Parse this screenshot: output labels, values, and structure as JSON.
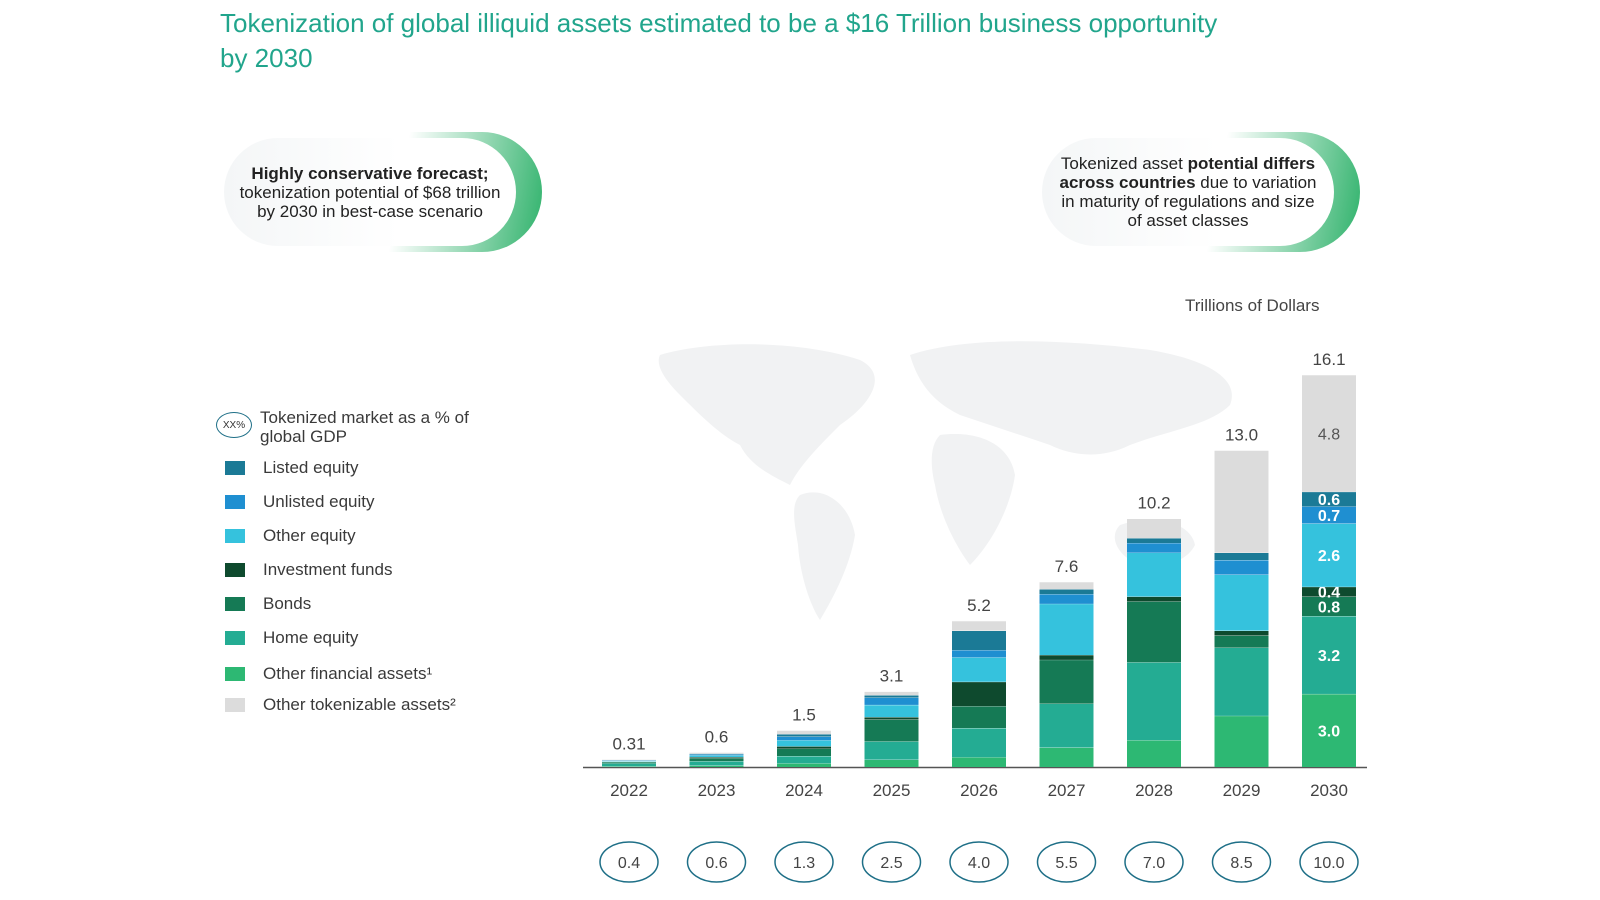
{
  "title": "Tokenization of global illiquid assets estimated to be a $16 Trillion business opportunity by 2030",
  "callouts": {
    "left": {
      "bold": "Highly conservative forecast;",
      "text": " tokenization potential of $68 trillion by 2030 in best-case scenario"
    },
    "right": {
      "pre": "Tokenized asset ",
      "bold": "potential differs across countries",
      "text": " due to variation in maturity of regulations and size of asset classes"
    }
  },
  "units_label": "Trillions of Dollars",
  "legend": {
    "gdp_marker": "XX%",
    "gdp_label": "Tokenized market as a % of global GDP",
    "items": [
      {
        "label": "Listed equity",
        "color": "#1b7a96"
      },
      {
        "label": "Unlisted equity",
        "color": "#1f8fd1"
      },
      {
        "label": "Other equity",
        "color": "#35c2dd"
      },
      {
        "label": "Investment funds",
        "color": "#0e4a2e"
      },
      {
        "label": "Bonds",
        "color": "#157a55"
      },
      {
        "label": "Home equity",
        "color": "#24ac93"
      },
      {
        "label": "Other financial assets¹",
        "color": "#2db873"
      },
      {
        "label": "Other tokenizable assets²",
        "color": "#dcdcdc"
      }
    ]
  },
  "chart_data": {
    "type": "bar",
    "stacked": true,
    "categories": [
      "2022",
      "2023",
      "2024",
      "2025",
      "2026",
      "2027",
      "2028",
      "2029",
      "2030"
    ],
    "totals": [
      "0.31",
      "0.6",
      "1.5",
      "3.1",
      "5.2",
      "7.6",
      "10.2",
      "13.0",
      "16.1"
    ],
    "series": [
      {
        "name": "Other financial assets¹",
        "color": "#2db873",
        "values": [
          0.03,
          0.06,
          0.15,
          0.3,
          0.4,
          0.8,
          1.1,
          2.1,
          3.0
        ],
        "labels": [
          null,
          null,
          null,
          null,
          null,
          null,
          null,
          null,
          "3.0"
        ]
      },
      {
        "name": "Home equity",
        "color": "#24ac93",
        "values": [
          0.12,
          0.18,
          0.3,
          0.75,
          1.2,
          1.8,
          3.2,
          2.8,
          3.2
        ],
        "labels": [
          null,
          null,
          null,
          null,
          null,
          null,
          null,
          null,
          "3.2"
        ]
      },
      {
        "name": "Bonds",
        "color": "#157a55",
        "values": [
          0.06,
          0.12,
          0.3,
          0.9,
          0.9,
          1.8,
          2.5,
          0.5,
          0.8
        ],
        "labels": [
          null,
          null,
          null,
          null,
          null,
          null,
          null,
          null,
          "0.8"
        ]
      },
      {
        "name": "Investment funds",
        "color": "#0e4a2e",
        "values": [
          0.01,
          0.05,
          0.1,
          0.1,
          1.0,
          0.2,
          0.2,
          0.2,
          0.4
        ],
        "labels": [
          null,
          null,
          null,
          null,
          null,
          null,
          null,
          null,
          "0.4"
        ]
      },
      {
        "name": "Other equity",
        "color": "#35c2dd",
        "values": [
          0.03,
          0.07,
          0.25,
          0.5,
          1.0,
          2.1,
          1.8,
          2.3,
          2.6
        ],
        "labels": [
          null,
          null,
          null,
          null,
          null,
          null,
          null,
          null,
          "2.6"
        ]
      },
      {
        "name": "Unlisted equity",
        "color": "#1f8fd1",
        "values": [
          0.02,
          0.04,
          0.15,
          0.3,
          0.3,
          0.4,
          0.4,
          0.6,
          0.7
        ],
        "labels": [
          null,
          null,
          null,
          null,
          null,
          null,
          null,
          null,
          "0.7"
        ]
      },
      {
        "name": "Listed equity",
        "color": "#1b7a96",
        "values": [
          0.02,
          0.03,
          0.1,
          0.1,
          0.8,
          0.2,
          0.2,
          0.3,
          0.6
        ],
        "labels": [
          null,
          null,
          null,
          null,
          null,
          null,
          null,
          null,
          "0.6"
        ]
      },
      {
        "name": "Other tokenizable assets²",
        "color": "#dcdcdc",
        "values": [
          0.02,
          0.05,
          0.15,
          0.15,
          0.4,
          0.3,
          0.8,
          4.2,
          4.8
        ],
        "labels": [
          null,
          null,
          null,
          null,
          null,
          null,
          null,
          null,
          "4.8"
        ]
      }
    ],
    "gdp_percent": [
      "0.4",
      "0.6",
      "1.3",
      "2.5",
      "4.0",
      "5.5",
      "7.0",
      "8.5",
      "10.0"
    ],
    "ylim": [
      0,
      17
    ]
  }
}
